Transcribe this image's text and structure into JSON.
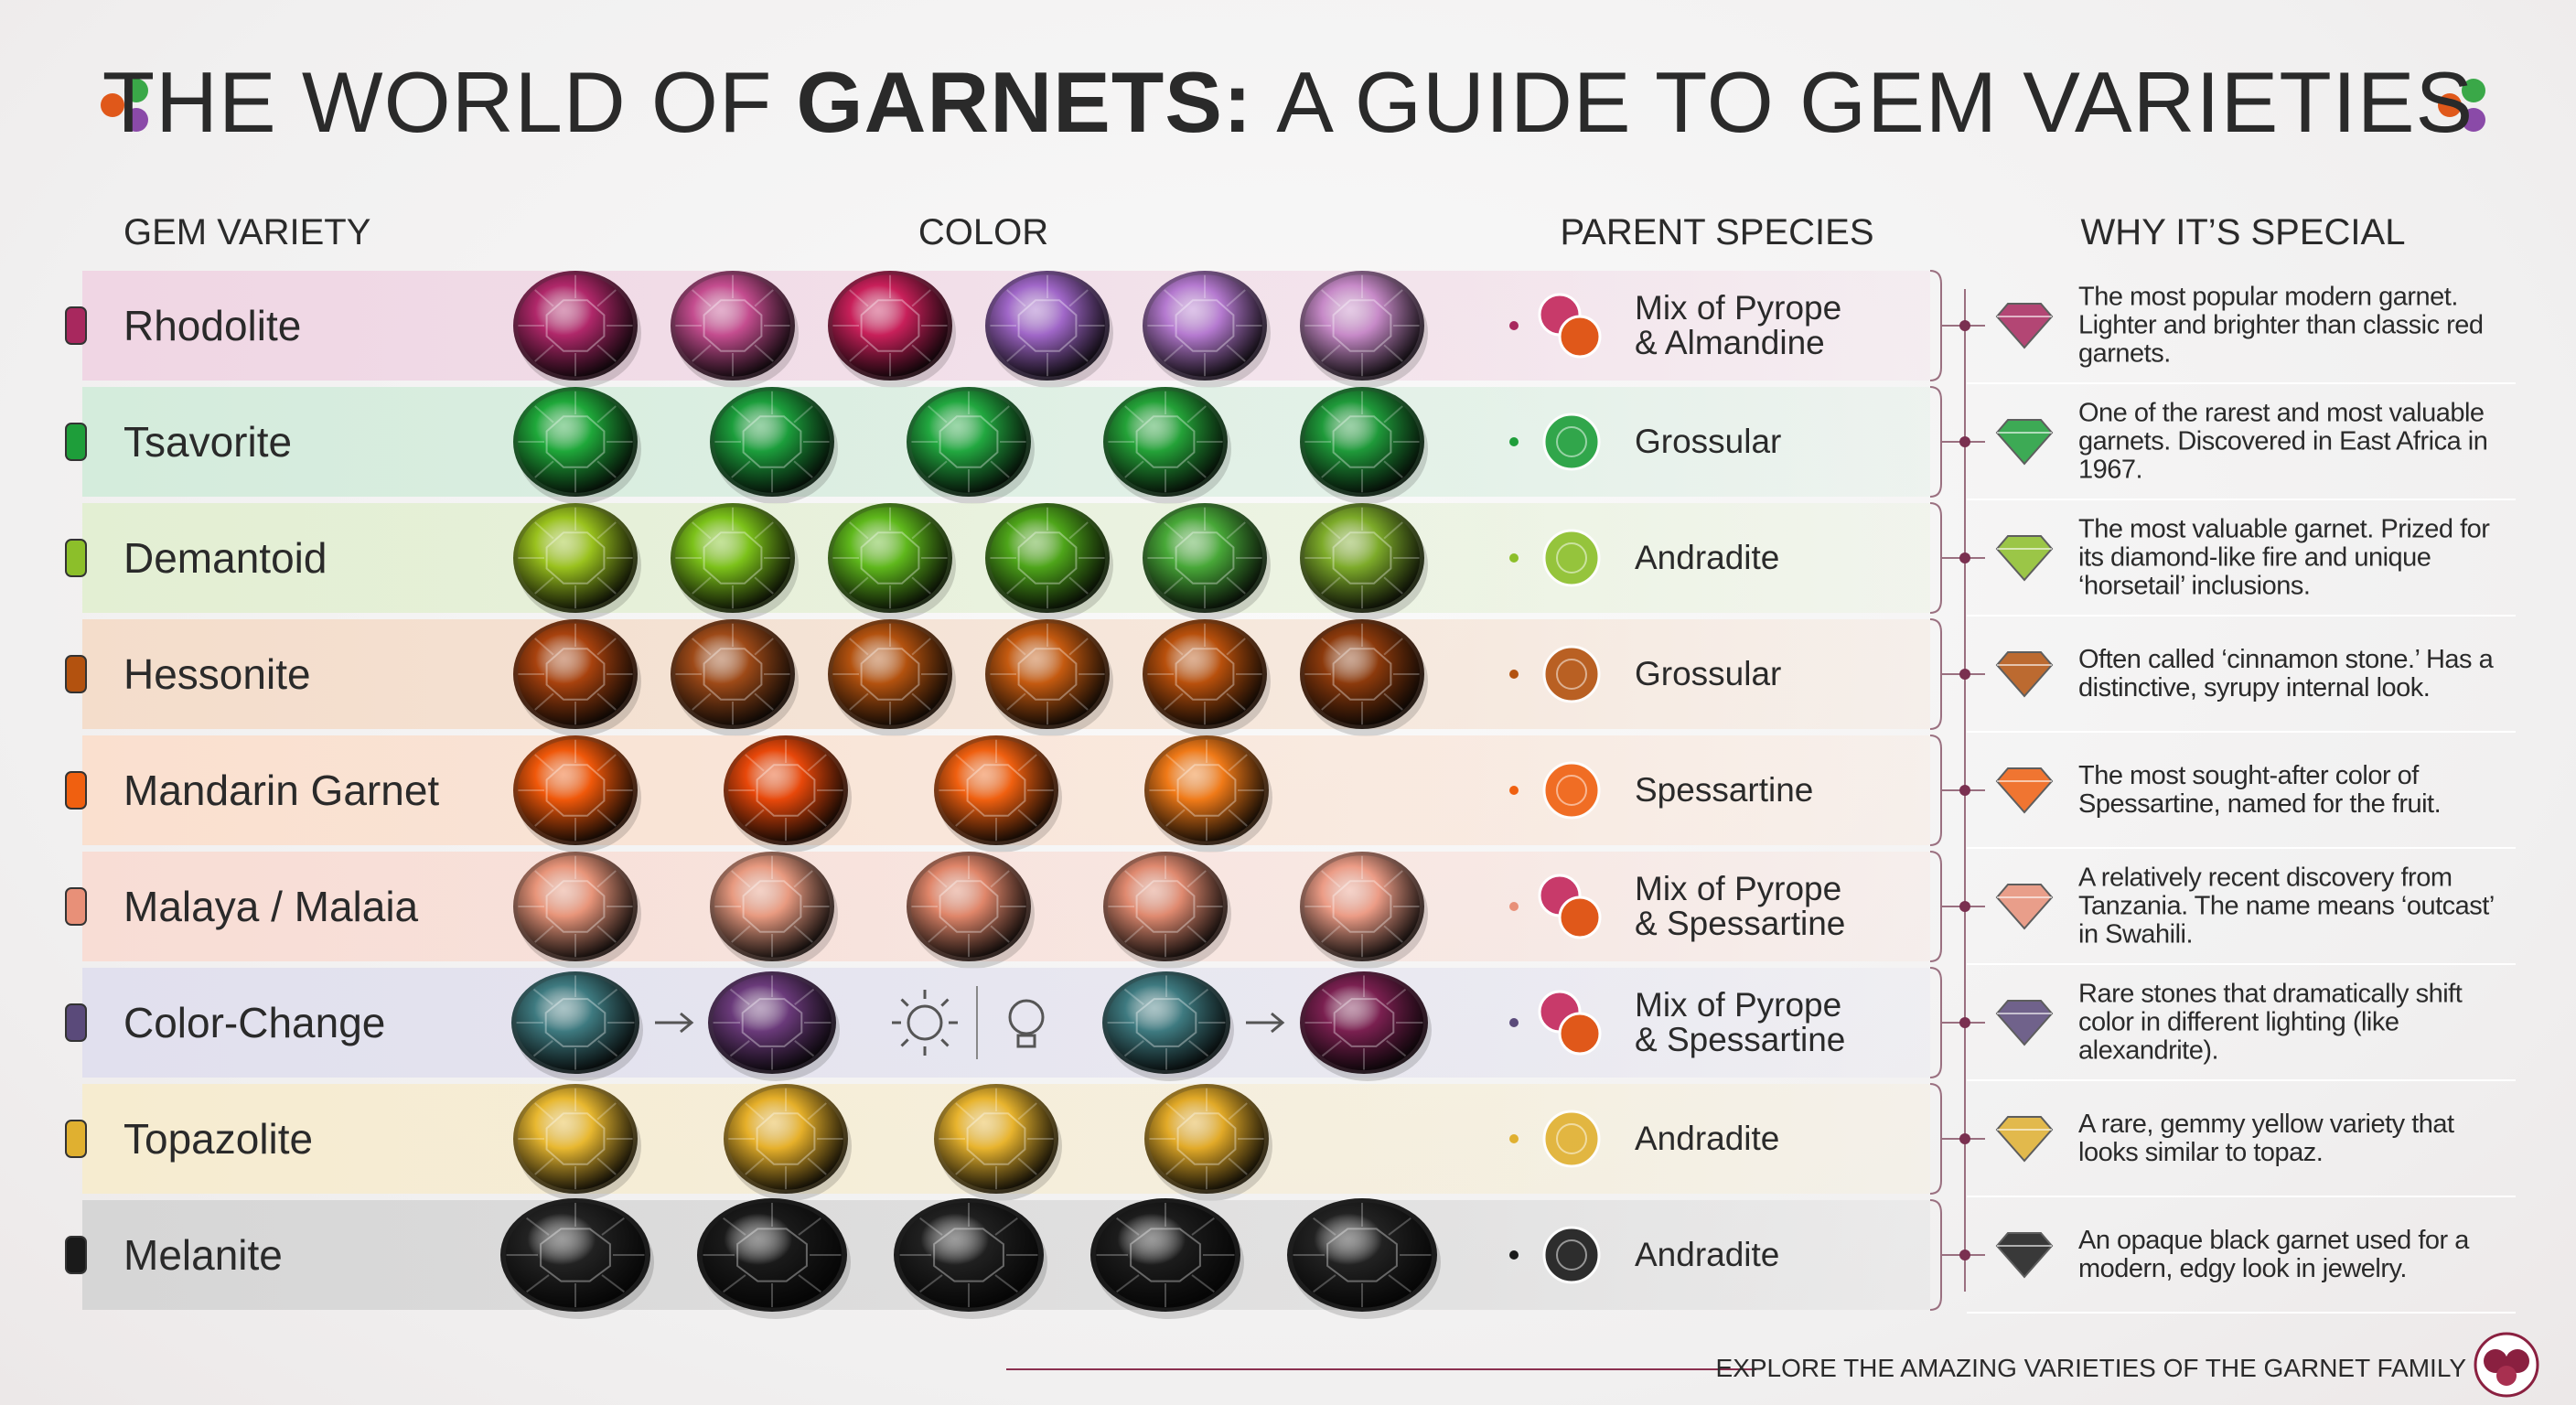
{
  "header": {
    "title": {
      "plain_start": "THE WORLD OF",
      "bold": "GARNETS:",
      "plain_end": "A GUIDE TO GEM VARIETIES"
    }
  },
  "columns": [
    "GEM VARIETY",
    "COLOR",
    "PARENT SPECIES",
    "WHY IT’S SPECIAL"
  ],
  "rows": [
    {
      "name": "Rhodolite",
      "species": [
        "Mix of Pyrope",
        "& Almandine"
      ],
      "description": "The most popular modern garnet. Lighter and brighter than classic red garnets."
    },
    {
      "name": "Tsavorite",
      "species": [
        "Grossular"
      ],
      "description": "One of the rarest and most valuable garnets. Discovered in East Africa in 1967."
    },
    {
      "name": "Demantoid",
      "species": [
        "Andradite"
      ],
      "description": "The most valuable garnet. Prized for its diamond-like fire and unique ‘horsetail’ inclusions."
    },
    {
      "name": "Hessonite",
      "species": [
        "Grossular"
      ],
      "description": "Often called ‘cinnamon stone.’ Has a distinctive, syrupy internal look."
    },
    {
      "name": "Mandarin Garnet",
      "species": [
        "Spessartine"
      ],
      "description": "The most sought-after color of Spessartine, named for the fruit."
    },
    {
      "name": "Malaya / Malaia",
      "species": [
        "Mix of Pyrope",
        "& Spessartine"
      ],
      "description": "A relatively recent discovery from Tanzania. The name means ‘outcast’ in Swahili."
    },
    {
      "name": "Color-Change",
      "species": [
        "Mix of Pyrope",
        "& Spessartine"
      ],
      "description": "Rare stones that dramatically shift color in different lighting (like alexandrite)."
    },
    {
      "name": "Topazolite",
      "species": [
        "Andradite"
      ],
      "description": "A rare, gemmy yellow variety that looks similar to topaz."
    },
    {
      "name": "Melanite",
      "species": [
        "Andradite"
      ],
      "description": "An opaque black garnet used for a modern, edgy look in jewelry."
    }
  ],
  "footer": {
    "text": "EXPLORE THE AMAZING VARIETIES OF THE GARNET FAMILY"
  }
}
